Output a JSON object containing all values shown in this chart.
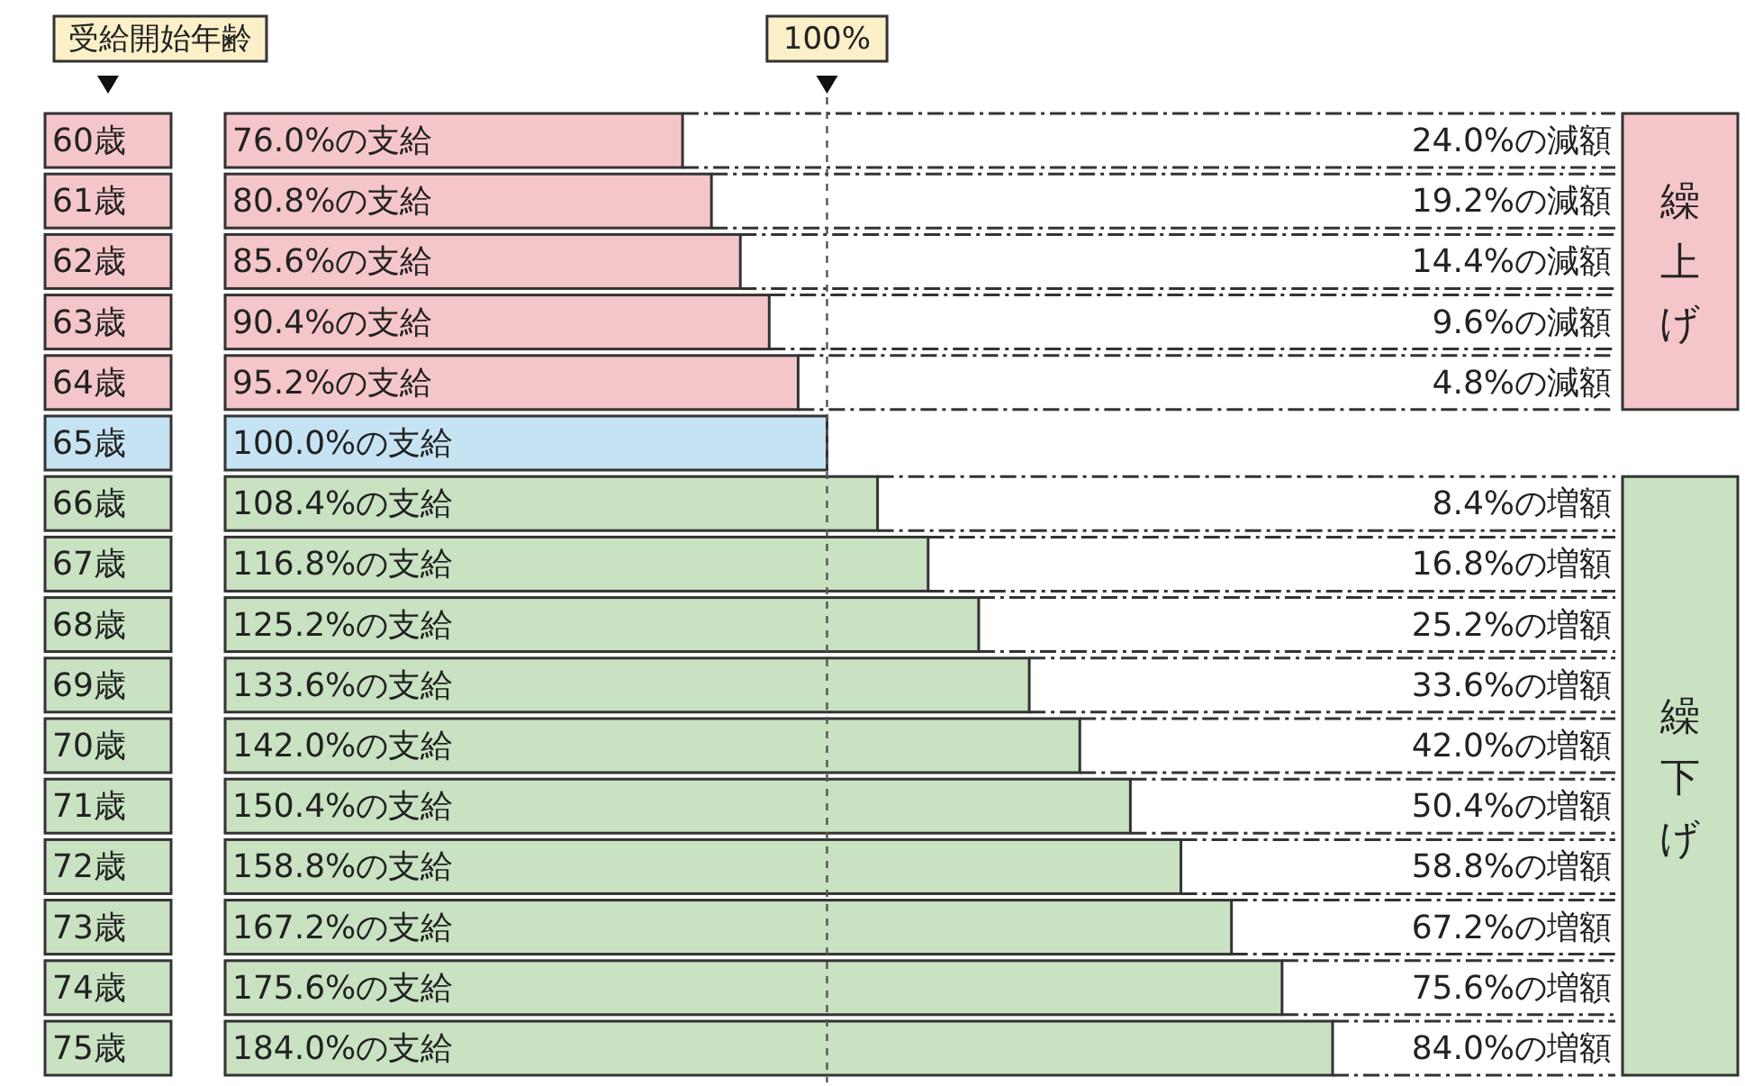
{
  "chart_data": {
    "type": "bar",
    "orientation": "horizontal",
    "categories": [
      "60歳",
      "61歳",
      "62歳",
      "63歳",
      "64歳",
      "65歳",
      "66歳",
      "67歳",
      "68歳",
      "69歳",
      "70歳",
      "71歳",
      "72歳",
      "73歳",
      "74歳",
      "75歳"
    ],
    "series": [
      {
        "values": [
          76.0,
          80.8,
          85.6,
          90.4,
          95.2,
          100.0,
          108.4,
          116.8,
          125.2,
          133.6,
          142.0,
          150.4,
          158.8,
          167.2,
          175.6,
          184.0
        ],
        "colors": [
          "#f5c6c9",
          "#f5c6c9",
          "#f5c6c9",
          "#f5c6c9",
          "#f5c6c9",
          "#c6e3f3",
          "#c9e2c2",
          "#c9e2c2",
          "#c9e2c2",
          "#c9e2c2",
          "#c9e2c2",
          "#c9e2c2",
          "#c9e2c2",
          "#c9e2c2",
          "#c9e2c2",
          "#c9e2c2"
        ],
        "value_labels": [
          "76.0%の支給",
          "80.8%の支給",
          "85.6%の支給",
          "90.4%の支給",
          "95.2%の支給",
          "100.0%の支給",
          "108.4%の支給",
          "116.8%の支給",
          "125.2%の支給",
          "133.6%の支給",
          "142.0%の支給",
          "150.4%の支給",
          "158.8%の支給",
          "167.2%の支給",
          "175.6%の支給",
          "184.0%の支給"
        ]
      }
    ],
    "ref_lines": [
      {
        "axis": "x",
        "value": 100,
        "label": "100%",
        "line_style": "dashed",
        "color": "#555555"
      }
    ],
    "annotations": [
      "受給開始年齢",
      "24.0%の減額",
      "19.2%の減額",
      "14.4%の減額",
      "9.6%の減額",
      "4.8%の減額",
      "8.4%の増額",
      "16.8%の増額",
      "25.2%の増額",
      "33.6%の増額",
      "42.0%の増額",
      "50.4%の増額",
      "58.8%の増額",
      "67.2%の増額",
      "75.6%の増額",
      "84.0%の増額",
      "繰上げ",
      "繰下げ"
    ]
  }
}
